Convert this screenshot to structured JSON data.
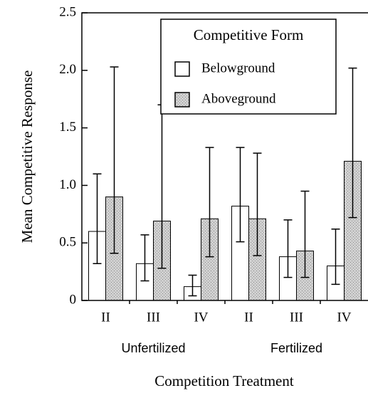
{
  "chart_data": {
    "type": "bar",
    "y_label": "Mean Competitive Response",
    "x_label": "Competition Treatment",
    "categories": [
      "II",
      "III",
      "IV",
      "II",
      "III",
      "IV"
    ],
    "groups": [
      "Unfertilized",
      "Fertilized"
    ],
    "ylim": [
      0,
      2.5
    ],
    "yticks": [
      0,
      {
        "value": 0.5,
        "label": "0.5"
      },
      {
        "value": 1.0,
        "label": "1.0"
      },
      {
        "value": 1.5,
        "label": "1.5"
      },
      {
        "value": 2.0,
        "label": "2.0"
      },
      {
        "value": 2.5,
        "label": "2.5"
      }
    ],
    "legend_title": "Competitive Form",
    "legend": "top-right",
    "series": [
      {
        "name": "Belowground",
        "color": "#ffffff",
        "values": [
          0.6,
          0.32,
          0.12,
          0.82,
          0.38,
          0.3
        ],
        "upper": [
          1.1,
          0.57,
          0.22,
          1.33,
          0.7,
          0.62
        ],
        "lower": [
          0.32,
          0.17,
          0.04,
          0.51,
          0.2,
          0.14
        ]
      },
      {
        "name": "Aboveground",
        "color": "#c8c8c8",
        "values": [
          0.9,
          0.69,
          0.71,
          0.71,
          0.43,
          1.21
        ],
        "upper": [
          2.03,
          1.7,
          1.33,
          1.28,
          0.95,
          2.02
        ],
        "lower": [
          0.41,
          0.28,
          0.38,
          0.39,
          0.2,
          0.72
        ]
      }
    ]
  }
}
